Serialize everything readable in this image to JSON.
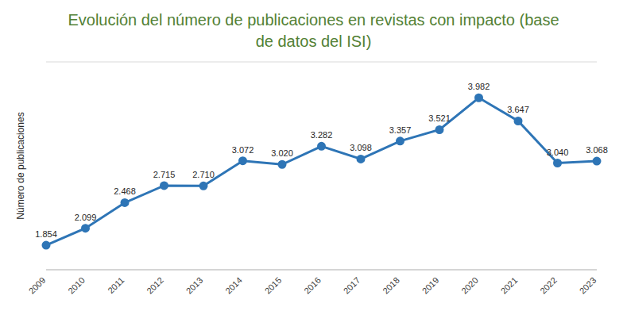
{
  "chart_data": {
    "type": "line",
    "title": "Evolución del número de publicaciones en revistas con impacto (base de datos del ISI)",
    "y_label": "Número de publicaciones",
    "categories": [
      "2009",
      "2010",
      "2011",
      "2012",
      "2013",
      "2014",
      "2015",
      "2016",
      "2017",
      "2018",
      "2019",
      "2020",
      "2021",
      "2022",
      "2023"
    ],
    "values": [
      1854,
      2099,
      2468,
      2715,
      2710,
      3072,
      3020,
      3282,
      3098,
      3357,
      3521,
      3982,
      3647,
      3040,
      3068
    ],
    "value_labels": [
      "1.854",
      "2.099",
      "2.468",
      "2.715",
      "2.710",
      "3.072",
      "3.020",
      "3.282",
      "3.098",
      "3.357",
      "3.521",
      "3.982",
      "3.647",
      "3.040",
      "3.068"
    ],
    "color": "#2e75b6",
    "marker": "circle",
    "ylim": [
      1500,
      4500
    ],
    "yticks": [
      1500,
      2000,
      2500,
      3000,
      3500,
      4000,
      4500
    ],
    "grid": true,
    "data_labels": true,
    "tick_labels": "x"
  }
}
